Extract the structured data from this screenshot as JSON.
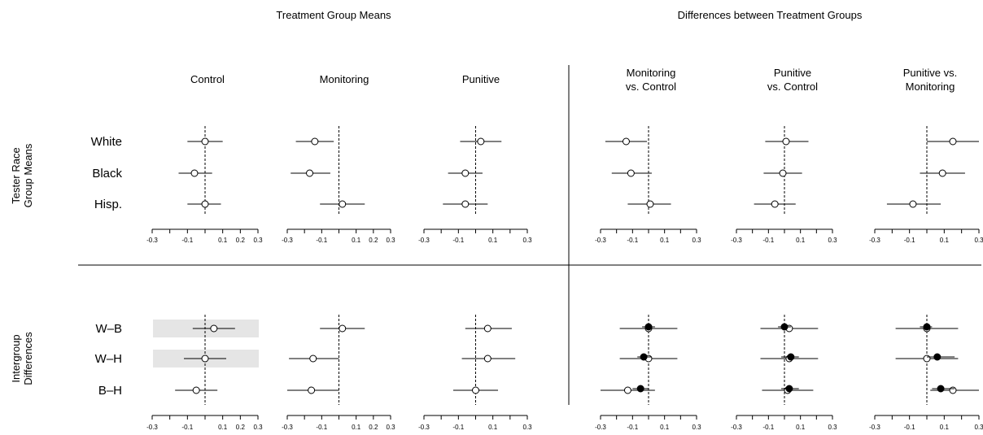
{
  "figure": {
    "left_heading": "Treatment Group Means",
    "right_heading": "Differences between Treatment Groups",
    "top_row_label": [
      "Tester Race",
      "Group Means"
    ],
    "bottom_row_label": [
      "Intergroup",
      "Differences"
    ]
  },
  "chart_data": {
    "type": "scatter",
    "subtype": "dot-and-whisker grid",
    "columns": [
      {
        "title": [
          "Control"
        ],
        "ticks": [
          -0.3,
          -0.1,
          0.1,
          0.2,
          0.3
        ],
        "ref": 0.0
      },
      {
        "title": [
          "Monitoring"
        ],
        "ticks": [
          -0.3,
          -0.1,
          0.1,
          0.2,
          0.3
        ],
        "ref": 0.0
      },
      {
        "title": [
          "Punitive"
        ],
        "ticks": [
          -0.3,
          -0.1,
          0.1,
          0.3
        ],
        "ref": 0.0
      },
      {
        "title": [
          "Monitoring",
          "vs. Control"
        ],
        "ticks": [
          -0.3,
          -0.1,
          0.1,
          0.3
        ],
        "ref": 0.0
      },
      {
        "title": [
          "Punitive",
          "vs. Control"
        ],
        "ticks": [
          -0.3,
          -0.1,
          0.1,
          0.3
        ],
        "ref": 0.0
      },
      {
        "title": [
          "Punitive vs.",
          "Monitoring"
        ],
        "ticks": [
          -0.3,
          -0.1,
          0.1,
          0.3
        ],
        "ref": 0.0
      }
    ],
    "xlim": [
      -0.3,
      0.3
    ],
    "rows": [
      {
        "categories": [
          "White",
          "Black",
          "Hisp."
        ],
        "highlight": [],
        "panels": [
          {
            "open": [
              {
                "est": 0.0,
                "lo": -0.1,
                "hi": 0.1
              },
              {
                "est": -0.06,
                "lo": -0.15,
                "hi": 0.04
              },
              {
                "est": 0.0,
                "lo": -0.1,
                "hi": 0.09
              }
            ],
            "filled": []
          },
          {
            "open": [
              {
                "est": -0.14,
                "lo": -0.25,
                "hi": -0.03
              },
              {
                "est": -0.17,
                "lo": -0.28,
                "hi": -0.05
              },
              {
                "est": 0.02,
                "lo": -0.11,
                "hi": 0.15
              }
            ],
            "filled": []
          },
          {
            "open": [
              {
                "est": 0.03,
                "lo": -0.09,
                "hi": 0.15
              },
              {
                "est": -0.06,
                "lo": -0.16,
                "hi": 0.04
              },
              {
                "est": -0.06,
                "lo": -0.19,
                "hi": 0.07
              }
            ],
            "filled": []
          },
          {
            "open": [
              {
                "est": -0.14,
                "lo": -0.27,
                "hi": -0.01
              },
              {
                "est": -0.11,
                "lo": -0.23,
                "hi": 0.02
              },
              {
                "est": 0.01,
                "lo": -0.13,
                "hi": 0.14
              }
            ],
            "filled": []
          },
          {
            "open": [
              {
                "est": 0.01,
                "lo": -0.12,
                "hi": 0.15
              },
              {
                "est": -0.01,
                "lo": -0.13,
                "hi": 0.11
              },
              {
                "est": -0.06,
                "lo": -0.19,
                "hi": 0.07
              }
            ],
            "filled": []
          },
          {
            "open": [
              {
                "est": 0.15,
                "lo": 0.0,
                "hi": 0.3
              },
              {
                "est": 0.09,
                "lo": -0.04,
                "hi": 0.22
              },
              {
                "est": -0.08,
                "lo": -0.23,
                "hi": 0.08
              }
            ],
            "filled": []
          }
        ]
      },
      {
        "categories": [
          "W–B",
          "W–H",
          "B–H"
        ],
        "highlight": [
          0,
          1
        ],
        "panels": [
          {
            "open": [
              {
                "est": 0.05,
                "lo": -0.07,
                "hi": 0.17
              },
              {
                "est": 0.0,
                "lo": -0.12,
                "hi": 0.12
              },
              {
                "est": -0.05,
                "lo": -0.17,
                "hi": 0.07
              }
            ],
            "filled": []
          },
          {
            "open": [
              {
                "est": 0.02,
                "lo": -0.11,
                "hi": 0.15
              },
              {
                "est": -0.15,
                "lo": -0.29,
                "hi": 0.0
              },
              {
                "est": -0.16,
                "lo": -0.3,
                "hi": 0.0
              }
            ],
            "filled": []
          },
          {
            "open": [
              {
                "est": 0.07,
                "lo": -0.06,
                "hi": 0.21
              },
              {
                "est": 0.07,
                "lo": -0.08,
                "hi": 0.23
              },
              {
                "est": 0.0,
                "lo": -0.13,
                "hi": 0.13
              }
            ],
            "filled": []
          },
          {
            "open": [
              {
                "est": 0.0,
                "lo": -0.18,
                "hi": 0.18
              },
              {
                "est": 0.0,
                "lo": -0.18,
                "hi": 0.18
              },
              {
                "est": -0.13,
                "lo": -0.3,
                "hi": 0.04
              }
            ],
            "filled": [
              {
                "est": 0.0,
                "lo": -0.04,
                "hi": 0.04
              },
              {
                "est": -0.03,
                "lo": -0.07,
                "hi": 0.02
              },
              {
                "est": -0.05,
                "lo": -0.1,
                "hi": 0.0
              }
            ]
          },
          {
            "open": [
              {
                "est": 0.03,
                "lo": -0.15,
                "hi": 0.21
              },
              {
                "est": 0.03,
                "lo": -0.15,
                "hi": 0.21
              },
              {
                "est": 0.02,
                "lo": -0.14,
                "hi": 0.18
              }
            ],
            "filled": [
              {
                "est": 0.0,
                "lo": -0.04,
                "hi": 0.04
              },
              {
                "est": 0.04,
                "lo": -0.02,
                "hi": 0.09
              },
              {
                "est": 0.03,
                "lo": -0.02,
                "hi": 0.09
              }
            ]
          },
          {
            "open": [
              {
                "est": 0.0,
                "lo": -0.18,
                "hi": 0.18
              },
              {
                "est": 0.0,
                "lo": -0.18,
                "hi": 0.18
              },
              {
                "est": 0.15,
                "lo": 0.02,
                "hi": 0.3
              }
            ],
            "filled": [
              {
                "est": 0.0,
                "lo": -0.04,
                "hi": 0.03
              },
              {
                "est": 0.06,
                "lo": 0.0,
                "hi": 0.16
              },
              {
                "est": 0.08,
                "lo": 0.03,
                "hi": 0.16
              }
            ]
          }
        ]
      }
    ]
  }
}
